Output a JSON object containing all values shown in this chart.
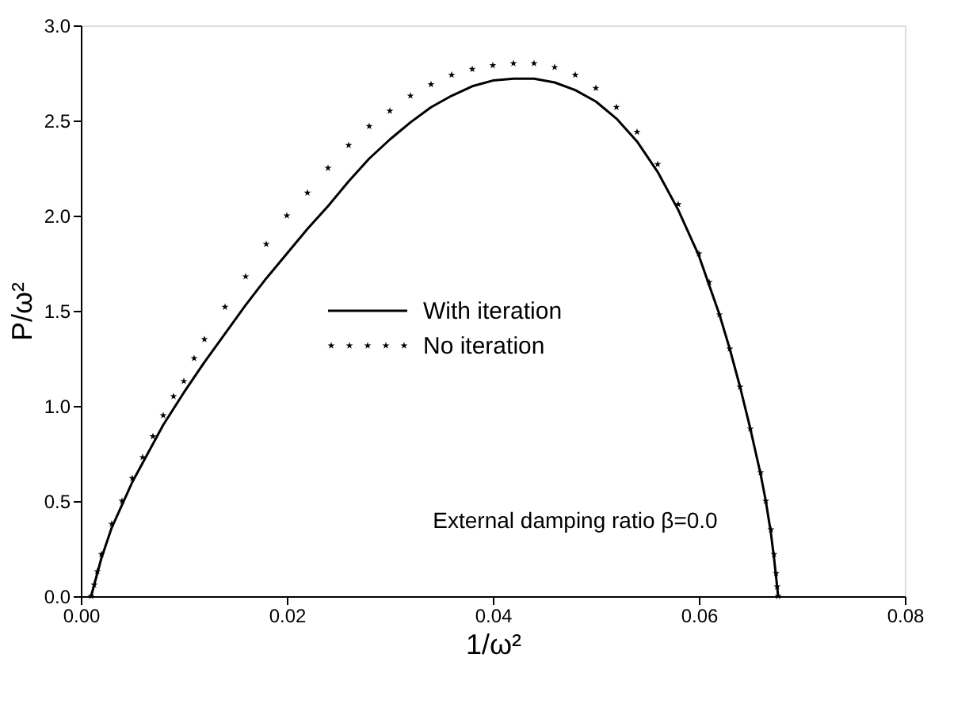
{
  "chart_data": {
    "type": "line",
    "xlabel": "1/ω²",
    "ylabel": "P/ω²",
    "xlim": [
      0,
      0.08
    ],
    "xticks": [
      {
        "value": 0,
        "label": "0.00"
      },
      {
        "value": 0.02,
        "label": "0.02"
      },
      {
        "value": 0.04,
        "label": "0.04"
      },
      {
        "value": 0.06,
        "label": "0.06"
      },
      {
        "value": 0.08,
        "label": "0.08"
      }
    ],
    "ylim": [
      0,
      3
    ],
    "yticks": [
      {
        "value": 0,
        "label": "0.0"
      },
      {
        "value": 0.5,
        "label": "0.5"
      },
      {
        "value": 1,
        "label": "1.0"
      },
      {
        "value": 1.5,
        "label": "1.5"
      },
      {
        "value": 2,
        "label": "2.0"
      },
      {
        "value": 2.5,
        "label": "2.5"
      },
      {
        "value": 3,
        "label": "3.0"
      }
    ],
    "grid": false,
    "legend": "center",
    "annotations": [
      "External damping ratio β=0.0"
    ],
    "series": [
      {
        "name": "With iteration",
        "color": "#000000",
        "line_style": "solid",
        "x": [
          0.001,
          0.0015,
          0.002,
          0.003,
          0.004,
          0.005,
          0.006,
          0.008,
          0.01,
          0.012,
          0.014,
          0.016,
          0.018,
          0.02,
          0.022,
          0.024,
          0.026,
          0.028,
          0.03,
          0.032,
          0.034,
          0.036,
          0.038,
          0.04,
          0.042,
          0.044,
          0.046,
          0.048,
          0.05,
          0.052,
          0.054,
          0.056,
          0.058,
          0.06,
          0.062,
          0.063,
          0.064,
          0.065,
          0.066,
          0.0665,
          0.067,
          0.0673,
          0.0675,
          0.0677
        ],
        "values": [
          0,
          0.1,
          0.2,
          0.36,
          0.48,
          0.6,
          0.7,
          0.9,
          1.07,
          1.23,
          1.38,
          1.53,
          1.67,
          1.8,
          1.93,
          2.05,
          2.18,
          2.3,
          2.4,
          2.49,
          2.57,
          2.63,
          2.68,
          2.71,
          2.72,
          2.72,
          2.7,
          2.66,
          2.6,
          2.51,
          2.39,
          2.23,
          2.03,
          1.79,
          1.48,
          1.3,
          1.1,
          0.88,
          0.64,
          0.5,
          0.33,
          0.2,
          0.1,
          0
        ]
      },
      {
        "name": "No iteration",
        "type": "scatter",
        "color": "#000000",
        "marker": "star",
        "x": [
          0.001,
          0.0013,
          0.0016,
          0.002,
          0.003,
          0.004,
          0.005,
          0.006,
          0.007,
          0.008,
          0.009,
          0.01,
          0.011,
          0.012,
          0.014,
          0.016,
          0.018,
          0.02,
          0.022,
          0.024,
          0.026,
          0.028,
          0.03,
          0.032,
          0.034,
          0.036,
          0.038,
          0.04,
          0.042,
          0.044,
          0.046,
          0.048,
          0.05,
          0.052,
          0.054,
          0.056,
          0.058,
          0.06,
          0.061,
          0.062,
          0.063,
          0.064,
          0.065,
          0.066,
          0.0665,
          0.067,
          0.0673,
          0.0675,
          0.0676,
          0.0677
        ],
        "values": [
          0,
          0.06,
          0.13,
          0.22,
          0.38,
          0.5,
          0.62,
          0.73,
          0.84,
          0.95,
          1.05,
          1.13,
          1.25,
          1.35,
          1.52,
          1.68,
          1.85,
          2.0,
          2.12,
          2.25,
          2.37,
          2.47,
          2.55,
          2.63,
          2.69,
          2.74,
          2.77,
          2.79,
          2.8,
          2.8,
          2.78,
          2.74,
          2.67,
          2.57,
          2.44,
          2.27,
          2.06,
          1.8,
          1.65,
          1.48,
          1.3,
          1.1,
          0.88,
          0.65,
          0.5,
          0.35,
          0.22,
          0.12,
          0.05,
          0
        ]
      }
    ]
  }
}
